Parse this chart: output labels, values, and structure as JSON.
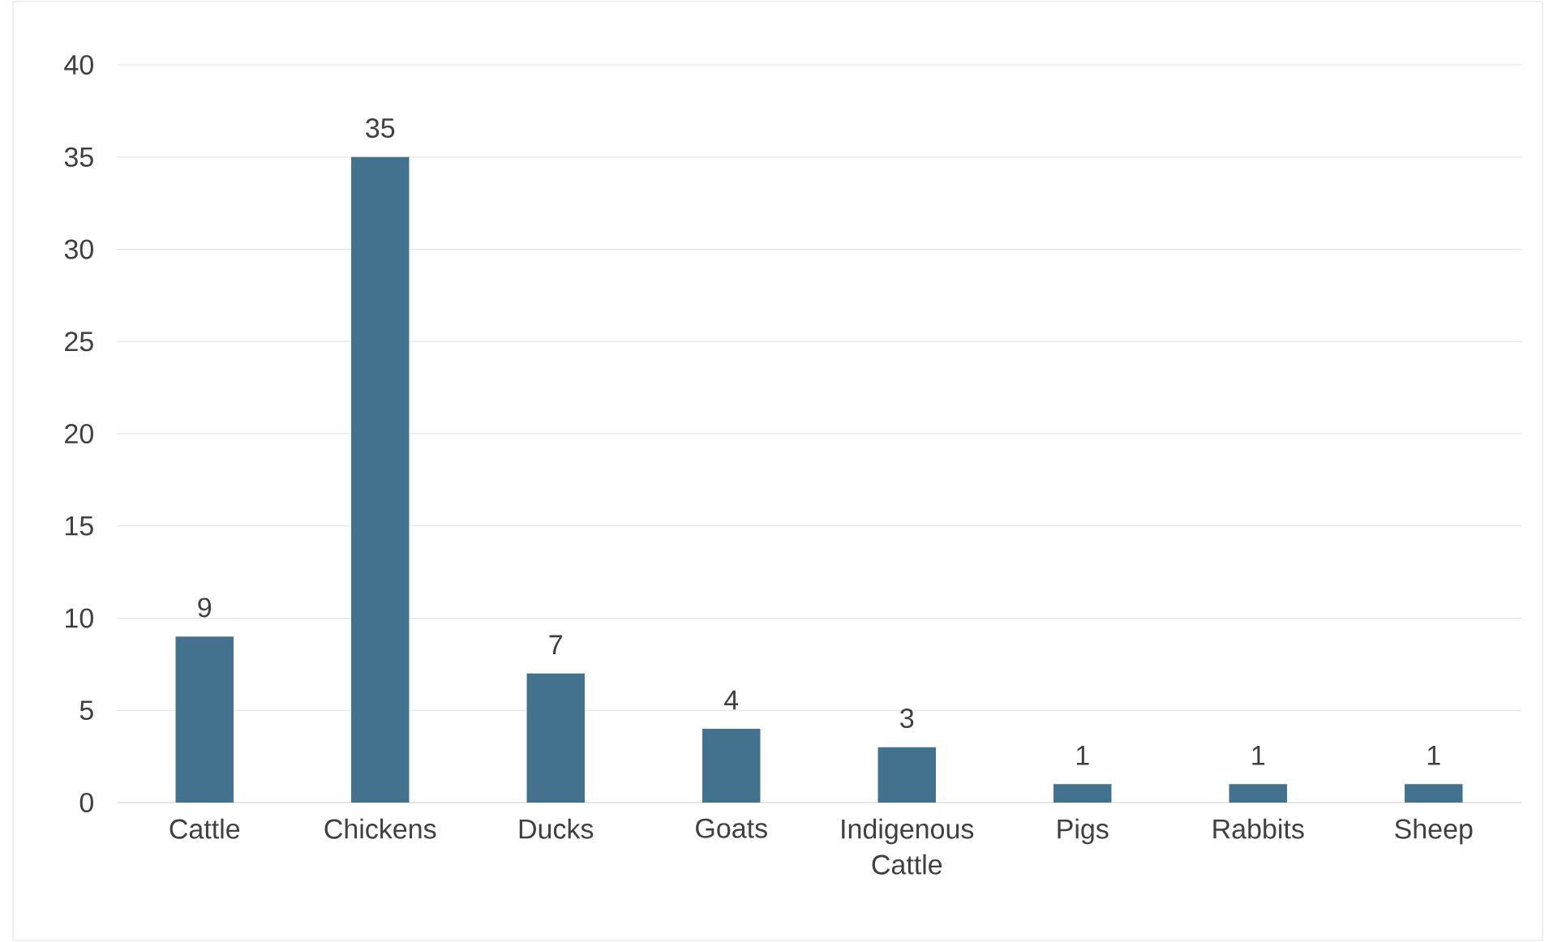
{
  "chart_data": {
    "type": "bar",
    "categories": [
      "Cattle",
      "Chickens",
      "Ducks",
      "Goats",
      "Indigenous Cattle",
      "Pigs",
      "Rabbits",
      "Sheep"
    ],
    "values": [
      9,
      35,
      7,
      4,
      3,
      1,
      1,
      1
    ],
    "color": "#43728f",
    "ylim": [
      0,
      40
    ],
    "yticks": [
      0,
      5,
      10,
      15,
      20,
      25,
      30,
      35,
      40
    ],
    "grid": "y",
    "data_labels": true
  }
}
